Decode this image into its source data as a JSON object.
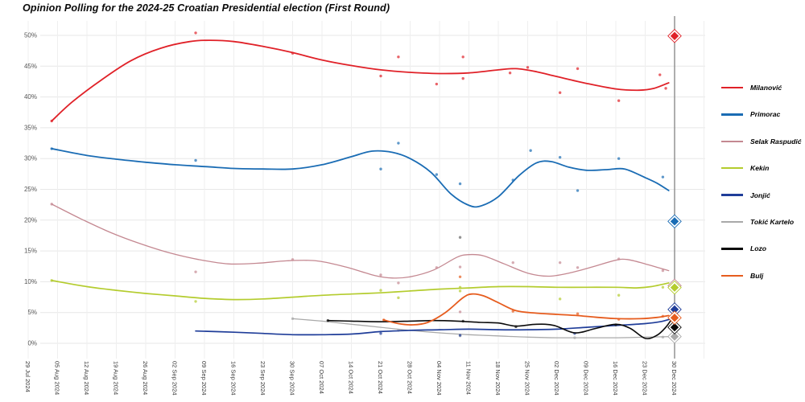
{
  "title": "Opinion Polling for the 2024-25 Croatian Presidential election (First Round)",
  "chart_data": {
    "type": "line",
    "title": "Opinion Polling for the 2024-25 Croatian Presidential election (First Round)",
    "xlabel": "",
    "ylabel": "",
    "ylim": [
      0,
      52
    ],
    "grid": true,
    "legend_position": "right",
    "x_axis": {
      "tick_labels": [
        "29 Jul 2024",
        "05 Aug 2024",
        "12 Aug 2024",
        "19 Aug 2024",
        "26 Aug 2024",
        "02 Sep 2024",
        "09 Sep 2024",
        "16 Sep 2024",
        "23 Sep 2024",
        "30 Sep 2024",
        "07 Oct 2024",
        "14 Oct 2024",
        "21 Oct 2024",
        "28 Oct 2024",
        "04 Nov 2024",
        "11 Nov 2024",
        "18 Nov 2024",
        "25 Nov 2024",
        "02 Dec 2024",
        "09 Dec 2024",
        "16 Dec 2024",
        "23 Dec 2024",
        "30 Dec 2024"
      ]
    },
    "y_axis": {
      "tick_values": [
        0,
        5,
        10,
        15,
        20,
        25,
        30,
        35,
        40,
        45,
        50
      ],
      "tick_labels": [
        "0%",
        "5%",
        "10%",
        "15%",
        "20%",
        "25%",
        "30%",
        "35%",
        "40%",
        "45%",
        "50%"
      ]
    },
    "election_day": {
      "x_label": "30 Dec 2024",
      "x_index": 22,
      "line_color": "#8c8c8c"
    },
    "series": [
      {
        "name": "Milanović",
        "slug": "milanovic",
        "color": "#e02128",
        "result_pct": 49.9,
        "trend": [
          [
            0.8,
            36.1
          ],
          [
            1.5,
            39.2
          ],
          [
            2.5,
            42.8
          ],
          [
            3.5,
            45.9
          ],
          [
            4.5,
            47.9
          ],
          [
            5.5,
            49.0
          ],
          [
            6.2,
            49.2
          ],
          [
            7,
            49.0
          ],
          [
            8,
            48.2
          ],
          [
            9,
            47.2
          ],
          [
            10,
            46.0
          ],
          [
            11,
            45.1
          ],
          [
            12,
            44.4
          ],
          [
            13,
            44.0
          ],
          [
            14,
            43.8
          ],
          [
            15,
            43.9
          ],
          [
            16,
            44.4
          ],
          [
            16.6,
            44.6
          ],
          [
            17.3,
            44.1
          ],
          [
            18,
            43.3
          ],
          [
            19,
            42.2
          ],
          [
            20,
            41.3
          ],
          [
            20.8,
            41.1
          ],
          [
            21.3,
            41.4
          ],
          [
            21.8,
            42.3
          ]
        ],
        "polls": [
          [
            0.8,
            36.1
          ],
          [
            5.7,
            50.4
          ],
          [
            9.0,
            47.1
          ],
          [
            12.0,
            43.4
          ],
          [
            12.6,
            46.5
          ],
          [
            13.9,
            42.1
          ],
          [
            14.8,
            46.5
          ],
          [
            14.8,
            43.0
          ],
          [
            16.4,
            43.9
          ],
          [
            17.0,
            44.8
          ],
          [
            18.1,
            40.7
          ],
          [
            18.7,
            44.6
          ],
          [
            20.1,
            39.4
          ],
          [
            21.5,
            43.6
          ],
          [
            21.7,
            41.4
          ]
        ]
      },
      {
        "name": "Primorac",
        "slug": "primorac",
        "color": "#1a6cb4",
        "result_pct": 19.8,
        "trend": [
          [
            0.8,
            31.6
          ],
          [
            2,
            30.5
          ],
          [
            3,
            29.9
          ],
          [
            4,
            29.4
          ],
          [
            5,
            29.0
          ],
          [
            6,
            28.7
          ],
          [
            7,
            28.4
          ],
          [
            8,
            28.3
          ],
          [
            9,
            28.3
          ],
          [
            10,
            29.0
          ],
          [
            11,
            30.3
          ],
          [
            11.7,
            31.2
          ],
          [
            12.4,
            31.0
          ],
          [
            13,
            30.0
          ],
          [
            13.7,
            27.8
          ],
          [
            14.4,
            24.2
          ],
          [
            15,
            22.4
          ],
          [
            15.4,
            22.3
          ],
          [
            16,
            23.8
          ],
          [
            16.7,
            27.2
          ],
          [
            17.3,
            29.3
          ],
          [
            17.8,
            29.5
          ],
          [
            18.4,
            28.6
          ],
          [
            19,
            28.1
          ],
          [
            19.7,
            28.2
          ],
          [
            20.3,
            28.3
          ],
          [
            21,
            26.9
          ],
          [
            21.4,
            26.0
          ],
          [
            21.8,
            24.8
          ]
        ],
        "polls": [
          [
            0.8,
            31.6
          ],
          [
            5.7,
            29.7
          ],
          [
            12.0,
            28.3
          ],
          [
            12.6,
            32.5
          ],
          [
            13.9,
            27.4
          ],
          [
            14.7,
            25.9
          ],
          [
            16.5,
            26.5
          ],
          [
            17.1,
            31.3
          ],
          [
            18.1,
            30.2
          ],
          [
            18.7,
            24.8
          ],
          [
            20.1,
            30.0
          ],
          [
            21.6,
            27.0
          ]
        ]
      },
      {
        "name": "Selak Raspudić",
        "slug": "selak-raspudic",
        "color": "#c48891",
        "result_pct": 9.35,
        "trend": [
          [
            0.8,
            22.6
          ],
          [
            1.8,
            20.2
          ],
          [
            2.8,
            18.0
          ],
          [
            3.8,
            16.2
          ],
          [
            4.8,
            14.7
          ],
          [
            5.8,
            13.6
          ],
          [
            6.8,
            12.9
          ],
          [
            7.8,
            13.0
          ],
          [
            8.8,
            13.4
          ],
          [
            9.8,
            13.4
          ],
          [
            10.8,
            12.4
          ],
          [
            11.8,
            11.0
          ],
          [
            12.4,
            10.6
          ],
          [
            13,
            10.8
          ],
          [
            13.8,
            11.9
          ],
          [
            14.6,
            14.0
          ],
          [
            15,
            14.4
          ],
          [
            15.5,
            14.2
          ],
          [
            16.2,
            12.9
          ],
          [
            17,
            11.4
          ],
          [
            17.7,
            10.9
          ],
          [
            18.4,
            11.4
          ],
          [
            19.2,
            12.4
          ],
          [
            20,
            13.5
          ],
          [
            20.4,
            13.6
          ],
          [
            21,
            12.9
          ],
          [
            21.8,
            11.8
          ]
        ],
        "polls": [
          [
            0.8,
            22.6
          ],
          [
            5.7,
            11.6
          ],
          [
            9.0,
            13.6
          ],
          [
            12.0,
            11.1
          ],
          [
            12.6,
            9.8
          ],
          [
            13.9,
            12.3
          ],
          [
            14.7,
            12.4
          ],
          [
            14.7,
            5.1
          ],
          [
            16.5,
            13.1
          ],
          [
            18.1,
            13.1
          ],
          [
            18.7,
            12.3
          ],
          [
            20.1,
            13.7
          ],
          [
            21.6,
            11.8
          ]
        ]
      },
      {
        "name": "Kekin",
        "slug": "kekin",
        "color": "#b4cc2e",
        "result_pct": 9.05,
        "trend": [
          [
            0.8,
            10.2
          ],
          [
            2,
            9.2
          ],
          [
            3,
            8.6
          ],
          [
            4,
            8.1
          ],
          [
            5,
            7.7
          ],
          [
            6,
            7.3
          ],
          [
            7,
            7.1
          ],
          [
            8,
            7.2
          ],
          [
            9,
            7.5
          ],
          [
            10,
            7.8
          ],
          [
            11,
            8.0
          ],
          [
            12,
            8.2
          ],
          [
            13,
            8.5
          ],
          [
            14,
            8.8
          ],
          [
            15,
            9.0
          ],
          [
            16,
            9.2
          ],
          [
            17,
            9.2
          ],
          [
            18,
            9.1
          ],
          [
            19,
            9.1
          ],
          [
            20,
            9.1
          ],
          [
            20.7,
            9.0
          ],
          [
            21.2,
            9.2
          ],
          [
            21.8,
            9.8
          ]
        ],
        "polls": [
          [
            0.8,
            10.2
          ],
          [
            5.7,
            6.8
          ],
          [
            12.0,
            8.6
          ],
          [
            12.6,
            7.4
          ],
          [
            14.7,
            9.1
          ],
          [
            14.7,
            8.5
          ],
          [
            18.1,
            7.2
          ],
          [
            20.1,
            7.8
          ],
          [
            21.6,
            9.1
          ]
        ]
      },
      {
        "name": "Jonjić",
        "slug": "jonjic",
        "color": "#1f3d99",
        "result_pct": 5.5,
        "trend": [
          [
            5.7,
            2.0
          ],
          [
            7,
            1.8
          ],
          [
            8,
            1.6
          ],
          [
            9,
            1.4
          ],
          [
            10,
            1.4
          ],
          [
            11,
            1.5
          ],
          [
            12,
            1.9
          ],
          [
            13,
            2.1
          ],
          [
            14,
            2.2
          ],
          [
            15,
            2.3
          ],
          [
            16,
            2.2
          ],
          [
            17,
            2.2
          ],
          [
            18,
            2.3
          ],
          [
            19,
            2.6
          ],
          [
            20,
            2.9
          ],
          [
            21,
            3.2
          ],
          [
            21.5,
            3.5
          ],
          [
            21.9,
            4.0
          ]
        ],
        "polls": [
          [
            12.0,
            1.6
          ],
          [
            14.7,
            1.3
          ],
          [
            18.6,
            1.6
          ]
        ]
      },
      {
        "name": "Tokić Kartelo",
        "slug": "tokic-kartelo",
        "color": "#a9a9a9",
        "result_pct": 1.1,
        "trend": [
          [
            9,
            4.0
          ],
          [
            10,
            3.6
          ],
          [
            11,
            3.1
          ],
          [
            12,
            2.6
          ],
          [
            13,
            2.1
          ],
          [
            14,
            1.7
          ],
          [
            15,
            1.4
          ],
          [
            16,
            1.2
          ],
          [
            17,
            1.0
          ],
          [
            18,
            0.9
          ],
          [
            19,
            0.9
          ],
          [
            20,
            0.9
          ],
          [
            21,
            1.0
          ],
          [
            21.9,
            1.1
          ]
        ],
        "polls": [
          [
            9.0,
            4.0
          ],
          [
            12.6,
            2.1
          ],
          [
            14.7,
            1.2
          ],
          [
            18.6,
            0.9
          ],
          [
            21.6,
            1.0
          ]
        ]
      },
      {
        "name": "Lozo",
        "slug": "lozo",
        "color": "#0a0a0a",
        "result_pct": 2.6,
        "trend": [
          [
            10.2,
            3.7
          ],
          [
            11,
            3.6
          ],
          [
            12,
            3.5
          ],
          [
            13,
            3.6
          ],
          [
            13.8,
            3.7
          ],
          [
            14.6,
            3.6
          ],
          [
            15.4,
            3.4
          ],
          [
            16,
            3.3
          ],
          [
            16.6,
            2.8
          ],
          [
            17.3,
            3.1
          ],
          [
            17.9,
            2.9
          ],
          [
            18.6,
            1.7
          ],
          [
            19.3,
            2.4
          ],
          [
            20,
            3.1
          ],
          [
            20.5,
            2.4
          ],
          [
            21,
            0.8
          ],
          [
            21.4,
            1.3
          ],
          [
            21.7,
            2.6
          ],
          [
            21.9,
            3.9
          ]
        ],
        "polls": [
          [
            10.2,
            3.7
          ],
          [
            14.8,
            3.6
          ],
          [
            16.6,
            2.7
          ],
          [
            20.0,
            3.0
          ]
        ]
      },
      {
        "name": "Bulj",
        "slug": "bulj",
        "color": "#e65c1e",
        "result_pct": 4.15,
        "trend": [
          [
            12.1,
            3.8
          ],
          [
            12.6,
            3.2
          ],
          [
            13.1,
            3.0
          ],
          [
            13.6,
            3.4
          ],
          [
            14.2,
            5.0
          ],
          [
            14.8,
            7.4
          ],
          [
            15.1,
            8.0
          ],
          [
            15.5,
            7.7
          ],
          [
            16,
            6.6
          ],
          [
            16.6,
            5.3
          ],
          [
            17.3,
            4.9
          ],
          [
            18,
            4.7
          ],
          [
            18.7,
            4.5
          ],
          [
            19.4,
            4.2
          ],
          [
            20.1,
            4.0
          ],
          [
            20.8,
            4.0
          ],
          [
            21.4,
            4.2
          ],
          [
            21.8,
            4.5
          ]
        ],
        "polls": [
          [
            12.1,
            3.8
          ],
          [
            14.7,
            10.8
          ],
          [
            16.5,
            5.2
          ],
          [
            18.7,
            4.8
          ],
          [
            20.1,
            3.9
          ],
          [
            21.6,
            4.4
          ]
        ]
      }
    ],
    "outlier_points": [
      {
        "x_index": 14.7,
        "pct": 17.2,
        "color": "#787878"
      }
    ],
    "colors": {
      "grid_horizontal": "#e7e7e7",
      "grid_vertical": "#efefef",
      "axis_text": "#3a3a3a",
      "y_axis_text": "#555555",
      "election_line": "#8c8c8c"
    }
  }
}
